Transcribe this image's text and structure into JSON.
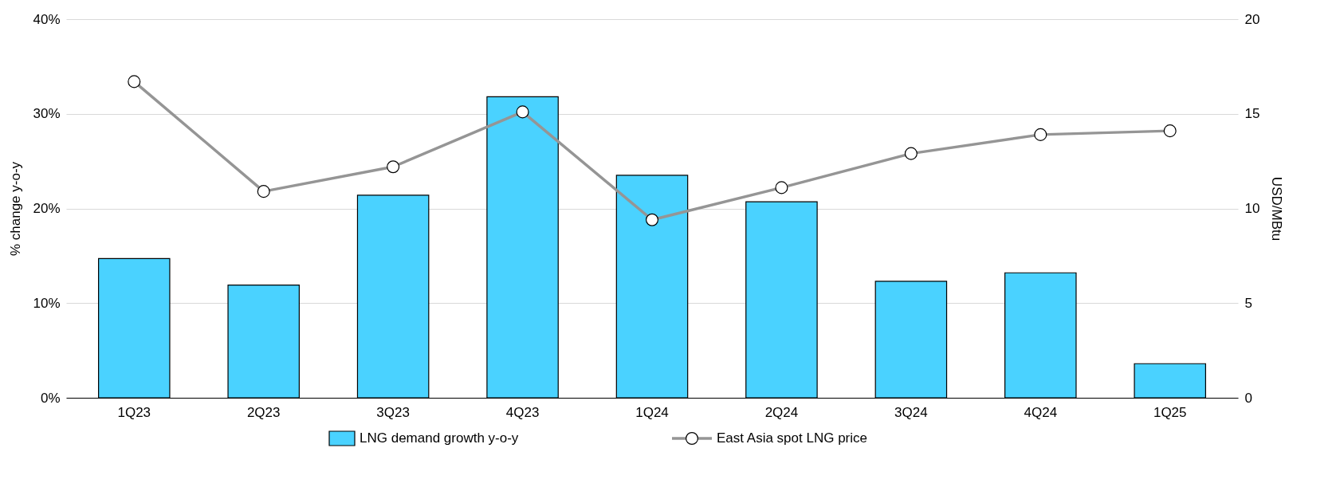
{
  "chart_data": {
    "type": "bar",
    "ylabel": "% change y-o-y",
    "y2label": "USD/MBtu",
    "categories": [
      "1Q23",
      "2Q23",
      "3Q23",
      "4Q23",
      "1Q24",
      "2Q24",
      "3Q24",
      "4Q24",
      "1Q25"
    ],
    "series": [
      {
        "name": "LNG demand growth y-o-y",
        "color": "#4ad2ff",
        "values": [
          14.7,
          11.9,
          21.4,
          31.8,
          23.5,
          20.7,
          12.3,
          13.2,
          3.6
        ]
      },
      {
        "name": "East Asia spot LNG price",
        "type": "line",
        "axis": "y2",
        "color": "#959595",
        "marker": "circle",
        "values": [
          16.7,
          10.9,
          12.2,
          15.1,
          9.4,
          11.1,
          12.9,
          13.9,
          14.1
        ]
      }
    ],
    "ylim": [
      0,
      40
    ],
    "yticks": [
      {
        "value": 0,
        "label": "0%"
      },
      {
        "value": 10,
        "label": "10%"
      },
      {
        "value": 20,
        "label": "20%"
      },
      {
        "value": 30,
        "label": "30%"
      },
      {
        "value": 40,
        "label": "40%"
      }
    ],
    "y2lim": [
      0,
      20
    ],
    "y2ticks": [
      0,
      5,
      10,
      15,
      20
    ],
    "grid": "y",
    "legend": "bottom"
  }
}
